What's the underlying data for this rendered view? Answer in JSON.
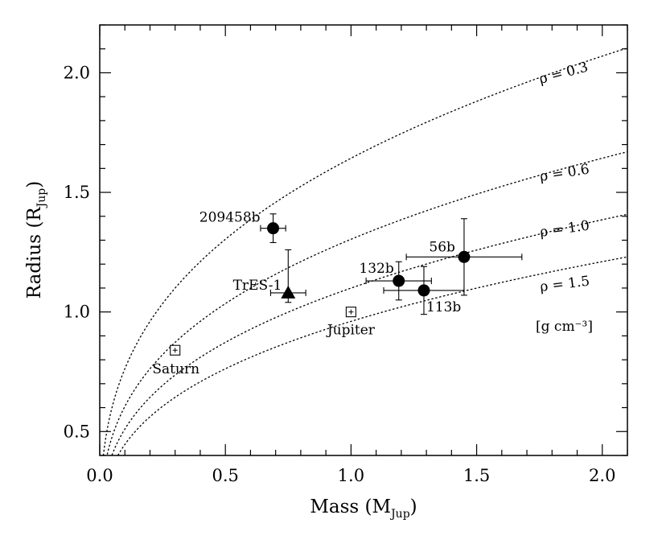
{
  "chart_data": {
    "type": "scatter",
    "title": "",
    "xlabel": "Mass (M",
    "xlabel_sub": "Jup",
    "xlabel_end": ")",
    "ylabel": "Radius (R",
    "ylabel_sub": "Jup",
    "ylabel_end": ")",
    "xlim": [
      0.0,
      2.1
    ],
    "ylim": [
      0.4,
      2.2
    ],
    "xticks": [
      "0.0",
      "0.5",
      "1.0",
      "1.5",
      "2.0"
    ],
    "xtick_values": [
      0.0,
      0.5,
      1.0,
      1.5,
      2.0
    ],
    "yticks": [
      "0.5",
      "1.0",
      "1.5",
      "2.0"
    ],
    "ytick_values": [
      0.5,
      1.0,
      1.5,
      2.0
    ],
    "density_curves": [
      {
        "label": "ρ = 0.3",
        "density": 0.3
      },
      {
        "label": "ρ = 0.6",
        "density": 0.6
      },
      {
        "label": "ρ = 1.0",
        "density": 1.0
      },
      {
        "label": "ρ = 1.5",
        "density": 1.5
      }
    ],
    "units_label": "[g cm⁻³]",
    "planets": [
      {
        "label": "209458b",
        "mass": 0.69,
        "radius": 1.35,
        "mass_err": [
          0.05,
          0.05
        ],
        "radius_err": [
          0.06,
          0.06
        ],
        "marker": "circle"
      },
      {
        "label": "TrES-1",
        "mass": 0.75,
        "radius": 1.08,
        "mass_err": [
          0.07,
          0.07
        ],
        "radius_err": [
          0.04,
          0.18
        ],
        "marker": "triangle"
      },
      {
        "label": "132b",
        "mass": 1.19,
        "radius": 1.13,
        "mass_err": [
          0.13,
          0.13
        ],
        "radius_err": [
          0.08,
          0.08
        ],
        "marker": "circle"
      },
      {
        "label": "113b",
        "mass": 1.29,
        "radius": 1.09,
        "mass_err": [
          0.16,
          0.16
        ],
        "radius_err": [
          0.1,
          0.1
        ],
        "marker": "circle"
      },
      {
        "label": "56b",
        "mass": 1.45,
        "radius": 1.23,
        "mass_err": [
          0.23,
          0.23
        ],
        "radius_err": [
          0.16,
          0.16
        ],
        "marker": "circle"
      },
      {
        "label": "Jupiter",
        "mass": 1.0,
        "radius": 1.0,
        "marker": "square"
      },
      {
        "label": "Saturn",
        "mass": 0.3,
        "radius": 0.84,
        "marker": "square"
      }
    ]
  }
}
